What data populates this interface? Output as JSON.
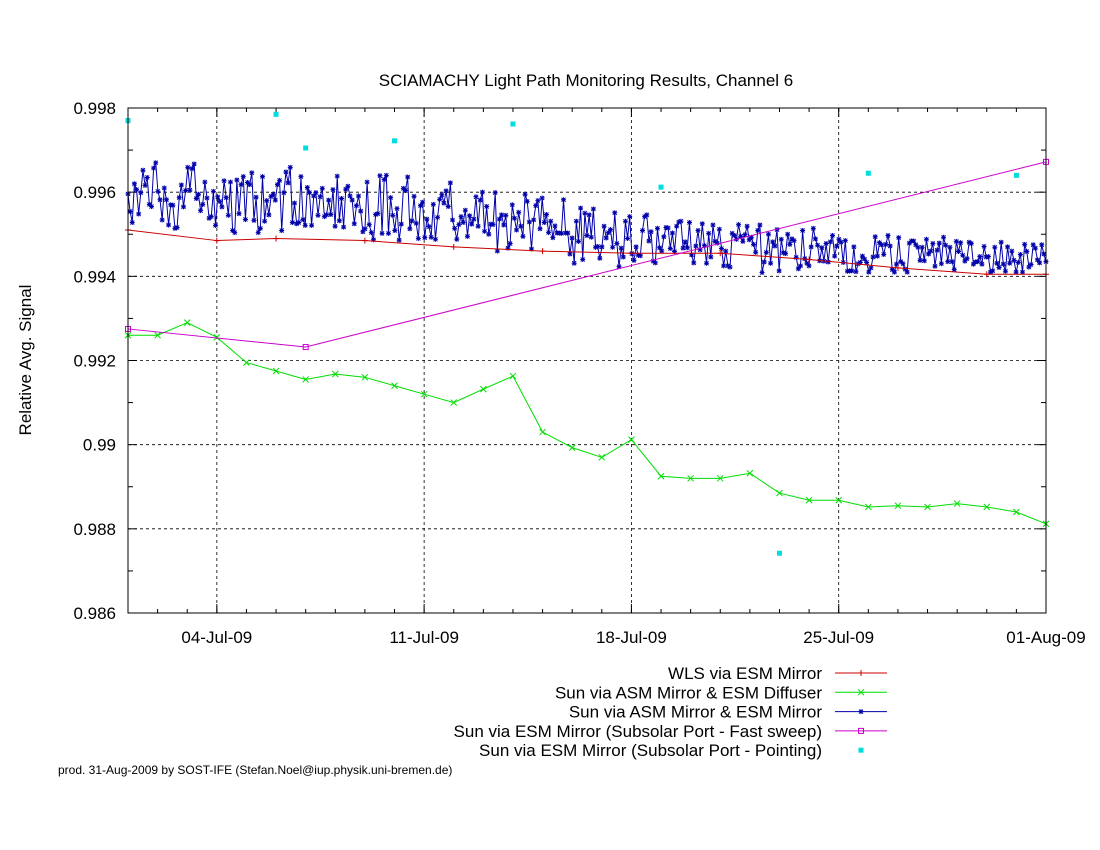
{
  "chart_data": {
    "type": "line",
    "title": "SCIAMACHY Light Path Monitoring Results, Channel 6",
    "xlabel": "",
    "ylabel": "Relative Avg. Signal",
    "ylim": [
      0.986,
      0.998
    ],
    "xlim": [
      "2009-07-01",
      "2009-08-01"
    ],
    "x_ticks": [
      "04-Jul-09",
      "11-Jul-09",
      "18-Jul-09",
      "25-Jul-09",
      "01-Aug-09"
    ],
    "x_tick_dates": [
      "2009-07-04",
      "2009-07-11",
      "2009-07-18",
      "2009-07-25",
      "2009-08-01"
    ],
    "y_ticks": [
      "0.986",
      "0.988",
      "0.99",
      "0.992",
      "0.994",
      "0.996",
      "0.998"
    ],
    "y_tick_values": [
      0.986,
      0.988,
      0.99,
      0.992,
      0.994,
      0.996,
      0.998
    ],
    "grid": true,
    "legend_position": "bottom-right",
    "series": [
      {
        "name": "WLS via ESM Mirror",
        "color": "#cc0000",
        "marker": "plus",
        "x": [
          "2009-07-01",
          "2009-07-04",
          "2009-07-06",
          "2009-07-09",
          "2009-07-12",
          "2009-07-15",
          "2009-07-18",
          "2009-07-21",
          "2009-07-24",
          "2009-07-27",
          "2009-07-30",
          "2009-08-01"
        ],
        "y": [
          0.9951,
          0.99485,
          0.9949,
          0.99485,
          0.9947,
          0.9946,
          0.99455,
          0.99455,
          0.9944,
          0.9942,
          0.99405,
          0.99405
        ]
      },
      {
        "name": "Sun via ASM Mirror & ESM Diffuser",
        "color": "#00dd00",
        "marker": "cross",
        "x": [
          "2009-07-01",
          "2009-07-02",
          "2009-07-03",
          "2009-07-04",
          "2009-07-05",
          "2009-07-06",
          "2009-07-07",
          "2009-07-08",
          "2009-07-09",
          "2009-07-10",
          "2009-07-11",
          "2009-07-12",
          "2009-07-13",
          "2009-07-14",
          "2009-07-15",
          "2009-07-16",
          "2009-07-17",
          "2009-07-18",
          "2009-07-19",
          "2009-07-20",
          "2009-07-21",
          "2009-07-22",
          "2009-07-23",
          "2009-07-24",
          "2009-07-25",
          "2009-07-26",
          "2009-07-27",
          "2009-07-28",
          "2009-07-29",
          "2009-07-30",
          "2009-07-31",
          "2009-08-01"
        ],
        "y": [
          0.9926,
          0.9926,
          0.9929,
          0.99255,
          0.99195,
          0.99175,
          0.99155,
          0.99168,
          0.9916,
          0.9914,
          0.9912,
          0.991,
          0.99132,
          0.99163,
          0.9903,
          0.98993,
          0.9897,
          0.99012,
          0.98925,
          0.9892,
          0.9892,
          0.98932,
          0.98885,
          0.98868,
          0.98868,
          0.98852,
          0.98855,
          0.98852,
          0.9886,
          0.98852,
          0.9884,
          0.98812
        ]
      },
      {
        "name": "Sun via ASM Mirror & ESM Mirror",
        "color": "#0000aa",
        "marker": "star",
        "x_range": [
          "2009-07-01",
          "2009-08-01"
        ],
        "samples_per_day": 14,
        "y": [
          0.99596,
          0.99554,
          0.99528,
          0.9962,
          0.99606,
          0.99548,
          0.99599,
          0.99652,
          0.99616,
          0.99635,
          0.99571,
          0.99566,
          0.99657,
          0.9967,
          0.99602,
          0.99582,
          0.99534,
          0.9961,
          0.99582,
          0.99522,
          0.9957,
          0.99569,
          0.99514,
          0.99516,
          0.99587,
          0.99617,
          0.99565,
          0.99604,
          0.99659,
          0.99605,
          0.99656,
          0.99667,
          0.99585,
          0.99595,
          0.99556,
          0.99571,
          0.99624,
          0.99586,
          0.99538,
          0.99542,
          0.99602,
          0.99521,
          0.99589,
          0.99578,
          0.99565,
          0.99627,
          0.99587,
          0.99545,
          0.99624,
          0.99509,
          0.99504,
          0.99629,
          0.99549,
          0.99618,
          0.99637,
          0.99535,
          0.99623,
          0.99618,
          0.99646,
          0.99533,
          0.99588,
          0.99504,
          0.99514,
          0.99637,
          0.99531,
          0.9958,
          0.99546,
          0.9959,
          0.99595,
          0.99581,
          0.99618,
          0.99628,
          0.99509,
          0.99599,
          0.99648,
          0.99622,
          0.99659,
          0.99528,
          0.99574,
          0.99525,
          0.99528,
          0.99637,
          0.99535,
          0.99521,
          0.99611,
          0.99599,
          0.99521,
          0.99591,
          0.99599,
          0.99545,
          0.99589,
          0.99609,
          0.99542,
          0.99546,
          0.99581,
          0.99547,
          0.99606,
          0.99519,
          0.99638,
          0.99532,
          0.99585,
          0.99517,
          0.99607,
          0.99614,
          0.99591,
          0.99581,
          0.99525,
          0.99568,
          0.99591,
          0.99555,
          0.99506,
          0.99513,
          0.99624,
          0.99523,
          0.99504,
          0.99487,
          0.99547,
          0.99549,
          0.99639,
          0.99502,
          0.9963,
          0.9964,
          0.99502,
          0.99587,
          0.99545,
          0.99509,
          0.99561,
          0.99486,
          0.99524,
          0.99609,
          0.99604,
          0.99636,
          0.99513,
          0.99532,
          0.9959,
          0.99526,
          0.9949,
          0.99568,
          0.99576,
          0.99492,
          0.99536,
          0.99518,
          0.99493,
          0.99571,
          0.99488,
          0.9954,
          0.99583,
          0.99594,
          0.99574,
          0.99603,
          0.99566,
          0.99622,
          0.99534,
          0.99514,
          0.99488,
          0.99523,
          0.99542,
          0.99528,
          0.99557,
          0.99495,
          0.99544,
          0.99524,
          0.99536,
          0.99589,
          0.99519,
          0.99581,
          0.996,
          0.99507,
          0.99566,
          0.995,
          0.99524,
          0.99523,
          0.99599,
          0.9946,
          0.99536,
          0.99546,
          0.99522,
          0.99545,
          0.99467,
          0.99478,
          0.9957,
          0.99538,
          0.9951,
          0.99552,
          0.99519,
          0.99495,
          0.99595,
          0.99578,
          0.99529,
          0.99465,
          0.99534,
          0.99568,
          0.9958,
          0.99513,
          0.99586,
          0.99528,
          0.99547,
          0.99504,
          0.99531,
          0.99492,
          0.9952,
          0.99503,
          0.99503,
          0.99502,
          0.99582,
          0.99503,
          0.99503,
          0.99453,
          0.99491,
          0.99431,
          0.99531,
          0.99483,
          0.99562,
          0.9944,
          0.9955,
          0.99497,
          0.99546,
          0.99493,
          0.9956,
          0.99469,
          0.99471,
          0.99443,
          0.9947,
          0.99519,
          0.99491,
          0.99504,
          0.99511,
          0.99469,
          0.99551,
          0.99478,
          0.99423,
          0.99467,
          0.99446,
          0.99531,
          0.9949,
          0.99542,
          0.99454,
          0.99438,
          0.9947,
          0.9945,
          0.99449,
          0.99509,
          0.99542,
          0.99546,
          0.99484,
          0.99506,
          0.99436,
          0.99432,
          0.99514,
          0.99468,
          0.9946,
          0.99494,
          0.99516,
          0.99515,
          0.99466,
          0.99503,
          0.99459,
          0.99519,
          0.99529,
          0.99531,
          0.99467,
          0.99482,
          0.99468,
          0.99528,
          0.99451,
          0.99432,
          0.99472,
          0.99509,
          0.99463,
          0.99525,
          0.99473,
          0.99431,
          0.99502,
          0.99446,
          0.99522,
          0.99483,
          0.99479,
          0.99512,
          0.99466,
          0.99425,
          0.9946,
          0.99425,
          0.99422,
          0.99502,
          0.99497,
          0.99488,
          0.99523,
          0.99495,
          0.99483,
          0.99499,
          0.99519,
          0.99487,
          0.99493,
          0.99476,
          0.99457,
          0.99509,
          0.99522,
          0.99409,
          0.99434,
          0.99457,
          0.995,
          0.99431,
          0.99482,
          0.99472,
          0.99511,
          0.99413,
          0.99488,
          0.99456,
          0.99454,
          0.995,
          0.99476,
          0.99489,
          0.99485,
          0.99445,
          0.99418,
          0.99425,
          0.99509,
          0.99442,
          0.99431,
          0.99425,
          0.9947,
          0.99514,
          0.99489,
          0.99474,
          0.99437,
          0.99468,
          0.99436,
          0.99478,
          0.99434,
          0.99482,
          0.99497,
          0.99448,
          0.99472,
          0.99488,
          0.99481,
          0.99433,
          0.99485,
          0.99412,
          0.99413,
          0.99413,
          0.9947,
          0.99411,
          0.9943,
          0.99433,
          0.99448,
          0.99441,
          0.99433,
          0.9941,
          0.9942,
          0.99446,
          0.99494,
          0.99448,
          0.9948,
          0.99475,
          0.99452,
          0.99476,
          0.99497,
          0.99472,
          0.99416,
          0.9941,
          0.99429,
          0.99492,
          0.99435,
          0.9943,
          0.99417,
          0.9941,
          0.99479,
          0.99484,
          0.99484,
          0.99475,
          0.99469,
          0.99438,
          0.99469,
          0.99437,
          0.99488,
          0.99453,
          0.9946,
          0.99478,
          0.99424,
          0.99462,
          0.99479,
          0.9943,
          0.99493,
          0.99474,
          0.99435,
          0.99469,
          0.99435,
          0.99416,
          0.99483,
          0.99459,
          0.9948,
          0.9945,
          0.99436,
          0.99442,
          0.99481,
          0.99478,
          0.99429,
          0.99434,
          0.99435,
          0.99447,
          0.99429,
          0.99471,
          0.99446,
          0.99447,
          0.9941,
          0.99413,
          0.99469,
          0.99431,
          0.99421,
          0.99481,
          0.99429,
          0.99412,
          0.9947,
          0.99431,
          0.9946,
          0.99438,
          0.9941,
          0.99433,
          0.99452,
          0.9941,
          0.99476,
          0.99459,
          0.99422,
          0.99428,
          0.99475,
          0.99467,
          0.99439,
          0.99432,
          0.99475,
          0.99453,
          0.99435
        ]
      },
      {
        "name": "Sun via ESM Mirror (Subsolar Port - Fast sweep)",
        "color": "#cc00cc",
        "marker": "square",
        "x": [
          "2009-07-01",
          "2009-07-07",
          "2009-08-01"
        ],
        "y": [
          0.99275,
          0.99232,
          0.99672
        ]
      },
      {
        "name": "Sun via ESM Mirror (Subsolar Port - Pointing)",
        "color": "#00dddd",
        "marker": "dot",
        "x": [
          "2009-07-01",
          "2009-07-06",
          "2009-07-07",
          "2009-07-10",
          "2009-07-14",
          "2009-07-19",
          "2009-07-23",
          "2009-07-26",
          "2009-07-31"
        ],
        "y": [
          0.9977,
          0.99785,
          0.99705,
          0.99722,
          0.99762,
          0.99612,
          0.98742,
          0.99645,
          0.9964
        ]
      }
    ]
  },
  "footer": {
    "credit": "prod. 31-Aug-2009 by SOST-IFE (Stefan.Noel@iup.physik.uni-bremen.de)"
  }
}
